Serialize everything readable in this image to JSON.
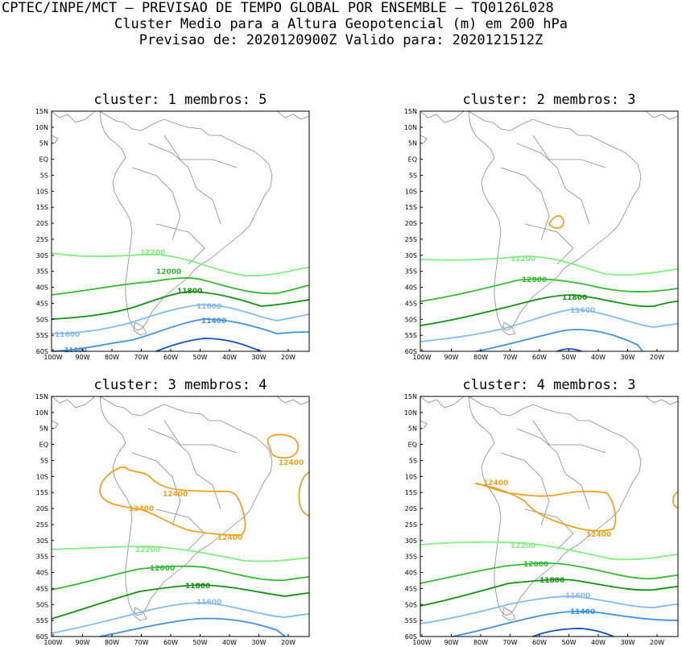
{
  "header": {
    "line1": "CPTEC/INPE/MCT – PREVISAO DE TEMPO GLOBAL POR ENSEMBLE – TQ0126L028",
    "line2": "Cluster Medio para a Altura Geopotencial (m) em 200 hPa",
    "line3": "Previsao de: 2020120900Z   Valido para: 2020121512Z"
  },
  "axes": {
    "lat_labels": [
      "15N",
      "10N",
      "5N",
      "EQ",
      "5S",
      "10S",
      "15S",
      "20S",
      "25S",
      "30S",
      "35S",
      "40S",
      "45S",
      "50S",
      "55S",
      "60S"
    ],
    "lon_labels": [
      "100W",
      "90W",
      "80W",
      "70W",
      "60W",
      "50W",
      "40W",
      "30W",
      "20W"
    ]
  },
  "colors": {
    "c12400": "#f0a020",
    "c12200": "#80ee80",
    "c12000": "#30bb30",
    "c11800": "#109010",
    "c11600": "#80bbf0",
    "c11400": "#4090e0",
    "c11200": "#1050c0",
    "coast": "#888888"
  },
  "panels": [
    {
      "title": "cluster: 1   membros: 5",
      "labels": {
        "l12200": "12200",
        "l12000": "12000",
        "l11800": "11800",
        "l11600a": "11600",
        "l11600b": "11600",
        "l11400a": "11400",
        "l11400b": "11400"
      }
    },
    {
      "title": "cluster: 2   membros: 3",
      "labels": {
        "l12200": "12200",
        "l12000": "12000",
        "l11800": "11800",
        "l11600": "11600"
      }
    },
    {
      "title": "cluster: 3   membros: 4",
      "labels": {
        "l12400a": "12400",
        "l12400b": "12400",
        "l12400c": "12400",
        "l12400d": "12400",
        "l12200": "12200",
        "l12000": "12000",
        "l11800": "11800",
        "l11600": "11600"
      }
    },
    {
      "title": "cluster: 4   membros: 3",
      "labels": {
        "l12400a": "12400",
        "l12400b": "12400",
        "l12200": "12200",
        "l12000": "12000",
        "l11800": "11800",
        "l11600": "11600",
        "l11400": "11400"
      }
    }
  ]
}
